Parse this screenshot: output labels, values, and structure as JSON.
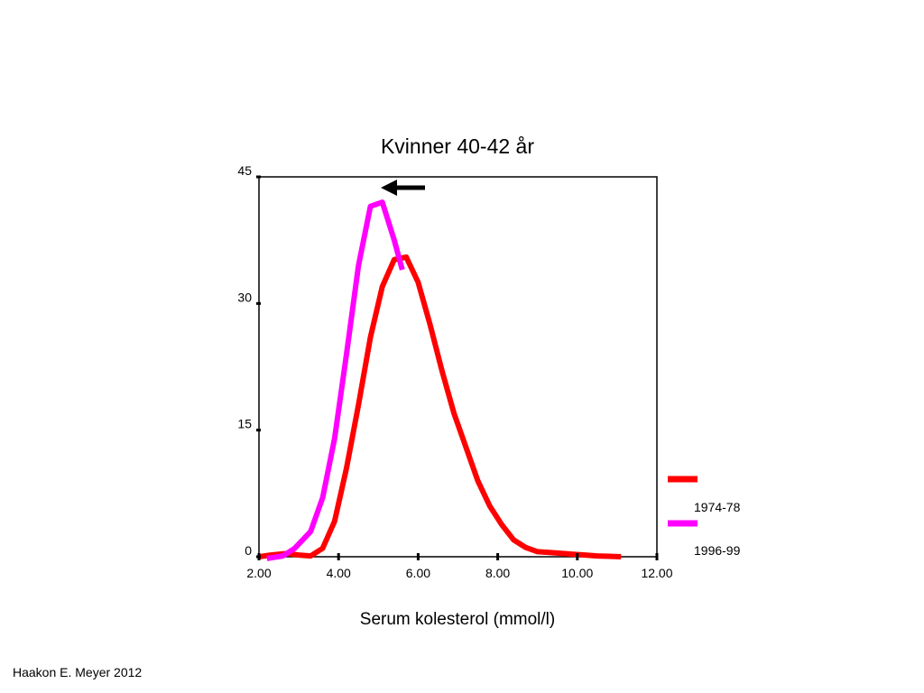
{
  "chart_data": {
    "type": "line",
    "title": "Kvinner 40-42 år",
    "xlabel": "Serum kolesterol (mmol/l)",
    "ylabel": "",
    "xlim": [
      2,
      12
    ],
    "ylim": [
      0,
      45
    ],
    "x_tick_values": [
      2,
      4,
      6,
      8,
      10,
      12
    ],
    "x_tick_labels": [
      "2.00",
      "4.00",
      "6.00",
      "8.00",
      "10.00",
      "12.00"
    ],
    "y_tick_values": [
      0,
      15,
      30,
      45
    ],
    "y_tick_labels": [
      "0",
      "15",
      "30",
      "45"
    ],
    "grid": false,
    "legend_position": "right",
    "series": [
      {
        "name": "1974-78",
        "color": "#ff0000",
        "points": [
          [
            2.0,
            0.0
          ],
          [
            2.3,
            0.2
          ],
          [
            2.7,
            0.4
          ],
          [
            3.0,
            0.2
          ],
          [
            3.3,
            0.1
          ],
          [
            3.6,
            1.0
          ],
          [
            3.9,
            4.2
          ],
          [
            4.2,
            10.5
          ],
          [
            4.5,
            18.0
          ],
          [
            4.8,
            26.0
          ],
          [
            5.1,
            32.0
          ],
          [
            5.4,
            35.2
          ],
          [
            5.7,
            35.5
          ],
          [
            6.0,
            32.5
          ],
          [
            6.3,
            27.5
          ],
          [
            6.6,
            22.0
          ],
          [
            6.9,
            17.0
          ],
          [
            7.2,
            13.0
          ],
          [
            7.5,
            9.0
          ],
          [
            7.8,
            6.0
          ],
          [
            8.1,
            3.8
          ],
          [
            8.4,
            2.0
          ],
          [
            8.7,
            1.1
          ],
          [
            9.0,
            0.6
          ],
          [
            9.3,
            0.5
          ],
          [
            9.6,
            0.4
          ],
          [
            9.9,
            0.3
          ],
          [
            10.2,
            0.2
          ],
          [
            10.5,
            0.1
          ],
          [
            10.8,
            0.05
          ],
          [
            11.1,
            0.0
          ]
        ]
      },
      {
        "name": "1996-99",
        "color": "#ff00ff",
        "points": [
          [
            2.2,
            -0.2
          ],
          [
            2.6,
            0.1
          ],
          [
            2.9,
            1.0
          ],
          [
            3.3,
            3.0
          ],
          [
            3.6,
            7.0
          ],
          [
            3.9,
            14.0
          ],
          [
            4.2,
            24.0
          ],
          [
            4.5,
            34.5
          ],
          [
            4.8,
            41.5
          ],
          [
            5.1,
            42.0
          ],
          [
            5.4,
            37.5
          ],
          [
            5.6,
            34.0
          ]
        ]
      }
    ],
    "annotations": [
      {
        "type": "arrow",
        "direction": "left",
        "color": "#000000"
      }
    ]
  },
  "footer": {
    "text": "Haakon E. Meyer 2012"
  }
}
